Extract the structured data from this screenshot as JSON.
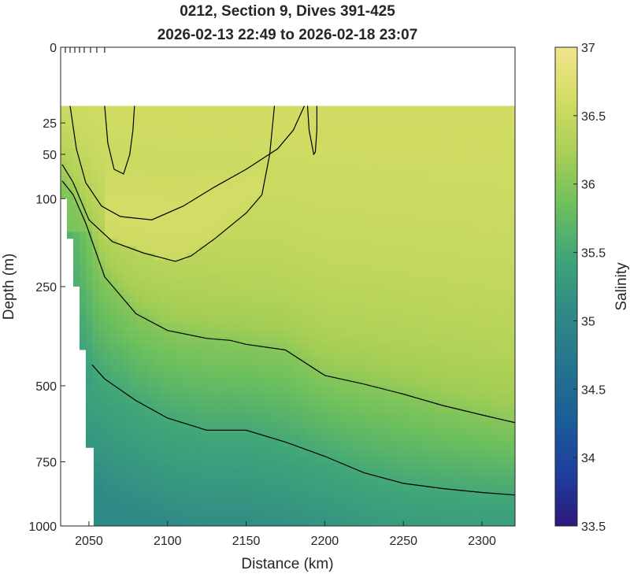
{
  "chart_data": {
    "type": "heatmap",
    "title_line1": "0212, Section 9, Dives 391-425",
    "title_line2": "2026-02-13 22:49 to 2026-02-18 23:07",
    "xlabel": "Distance (km)",
    "ylabel": "Depth (m)",
    "colorbar_label": "Salinity",
    "xlim": [
      2032,
      2321
    ],
    "ylim": [
      0,
      1000
    ],
    "y_scale": "square-root",
    "x_ticks": [
      "2050",
      "2100",
      "2150",
      "2200",
      "2250",
      "2300"
    ],
    "x_tick_values": [
      2050,
      2100,
      2150,
      2200,
      2250,
      2300
    ],
    "y_ticks": [
      "0",
      "25",
      "50",
      "100",
      "250",
      "500",
      "750",
      "1000"
    ],
    "y_tick_values": [
      0,
      25,
      50,
      100,
      250,
      500,
      750,
      1000
    ],
    "clim": [
      33.5,
      37
    ],
    "colorbar_ticks": [
      "33.5",
      "34",
      "34.5",
      "35",
      "35.5",
      "36",
      "36.5",
      "37"
    ],
    "colorbar_tick_values": [
      33.5,
      34,
      34.5,
      35,
      35.5,
      36,
      36.5,
      37
    ],
    "dive_marker_distances": [
      2035,
      2038,
      2041,
      2044,
      2047,
      2051,
      2055,
      2060
    ],
    "data_top_depth": 15,
    "contour_levels": [
      35.5,
      36.0,
      36.5
    ],
    "contours": [
      {
        "level": 35.5,
        "points": [
          [
            2052,
            440
          ],
          [
            2060,
            480
          ],
          [
            2080,
            545
          ],
          [
            2100,
            600
          ],
          [
            2125,
            640
          ],
          [
            2150,
            640
          ],
          [
            2175,
            680
          ],
          [
            2200,
            730
          ],
          [
            2225,
            790
          ],
          [
            2250,
            830
          ],
          [
            2275,
            850
          ],
          [
            2300,
            865
          ],
          [
            2321,
            875
          ]
        ]
      },
      {
        "level": 36.0,
        "points": [
          [
            2033,
            78
          ],
          [
            2040,
            95
          ],
          [
            2048,
            135
          ],
          [
            2060,
            230
          ],
          [
            2080,
            310
          ],
          [
            2100,
            350
          ],
          [
            2125,
            370
          ],
          [
            2140,
            375
          ],
          [
            2150,
            385
          ],
          [
            2175,
            400
          ],
          [
            2200,
            470
          ],
          [
            2225,
            495
          ],
          [
            2250,
            525
          ],
          [
            2275,
            560
          ],
          [
            2300,
            590
          ],
          [
            2321,
            615
          ]
        ]
      },
      {
        "level": 36.5,
        "points": [
          [
            2033,
            60
          ],
          [
            2040,
            80
          ],
          [
            2050,
            130
          ],
          [
            2065,
            165
          ],
          [
            2085,
            185
          ],
          [
            2105,
            200
          ],
          [
            2115,
            190
          ],
          [
            2130,
            160
          ],
          [
            2150,
            120
          ],
          [
            2160,
            95
          ],
          [
            2165,
            50
          ],
          [
            2168,
            15
          ]
        ]
      },
      {
        "level": 36.5,
        "points": [
          [
            2038,
            15
          ],
          [
            2042,
            45
          ],
          [
            2048,
            80
          ],
          [
            2058,
            110
          ],
          [
            2070,
            125
          ],
          [
            2090,
            130
          ],
          [
            2110,
            110
          ],
          [
            2130,
            85
          ],
          [
            2150,
            65
          ],
          [
            2170,
            45
          ],
          [
            2180,
            30
          ],
          [
            2187,
            15
          ]
        ]
      },
      {
        "level": 36.5,
        "points": [
          [
            2060,
            15
          ],
          [
            2062,
            40
          ],
          [
            2066,
            65
          ],
          [
            2072,
            70
          ],
          [
            2076,
            50
          ],
          [
            2078,
            30
          ],
          [
            2079,
            15
          ]
        ]
      },
      {
        "level": 36.5,
        "points": [
          [
            2189,
            15
          ],
          [
            2190,
            30
          ],
          [
            2193,
            50
          ],
          [
            2194,
            48
          ],
          [
            2195,
            30
          ],
          [
            2195,
            15
          ]
        ]
      }
    ],
    "missing_profile_bottoms": [
      [
        2036,
        100
      ],
      [
        2040,
        160
      ],
      [
        2044,
        250
      ],
      [
        2048,
        400
      ],
      [
        2053,
        700
      ],
      [
        2321,
        1000
      ]
    ],
    "colormap": [
      "#2b1a7a",
      "#1f3e9e",
      "#1a5e98",
      "#25738f",
      "#2f8a86",
      "#3ea47a",
      "#6cbf5e",
      "#a8cf55",
      "#d2dc64",
      "#f1e48d"
    ]
  }
}
